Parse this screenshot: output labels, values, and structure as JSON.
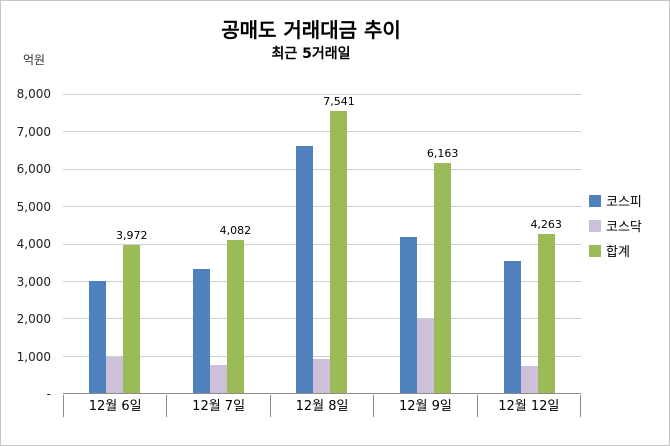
{
  "chart_data": {
    "type": "bar",
    "title": "공매도 거래대금 추이",
    "subtitle": "최근 5거래일",
    "unit_label": "억원",
    "categories": [
      "12월 6일",
      "12월 7일",
      "12월 8일",
      "12월 9일",
      "12월 12일"
    ],
    "series": [
      {
        "name": "코스피",
        "color": "#4F81BD",
        "values": [
          3000,
          3330,
          6620,
          4180,
          3530
        ]
      },
      {
        "name": "코스닥",
        "color": "#CCC0DA",
        "values": [
          972,
          752,
          921,
          1983,
          733
        ]
      },
      {
        "name": "합계",
        "color": "#9BBB59",
        "values": [
          3972,
          4082,
          7541,
          6163,
          4263
        ],
        "data_labels": [
          "3,972",
          "4,082",
          "7,541",
          "6,163",
          "4,263"
        ]
      }
    ],
    "ylim": [
      0,
      8000
    ],
    "ytick_step": 1000,
    "ytick_labels": [
      "8,000",
      "7,000",
      "6,000",
      "5,000",
      "4,000",
      "3,000",
      "2,000",
      "1,000",
      "-"
    ],
    "grid": true,
    "legend_position": "right"
  }
}
